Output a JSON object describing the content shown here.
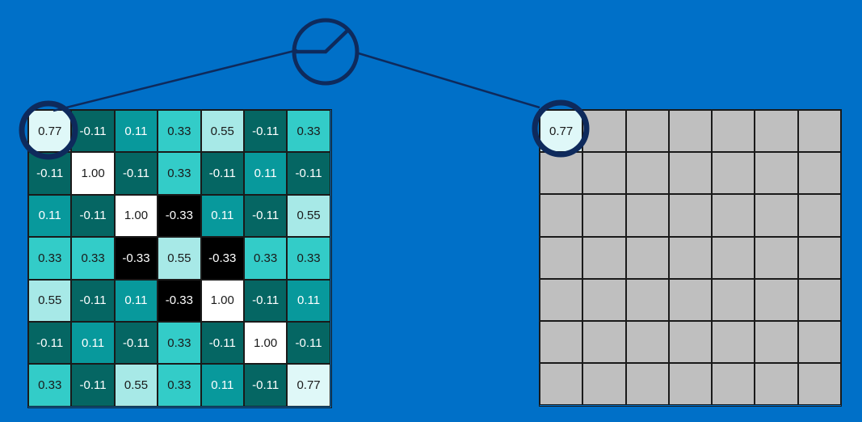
{
  "input_grid": {
    "values": [
      [
        "0.77",
        "-0.11",
        "0.11",
        "0.33",
        "0.55",
        "-0.11",
        "0.33"
      ],
      [
        "-0.11",
        "1.00",
        "-0.11",
        "0.33",
        "-0.11",
        "0.11",
        "-0.11"
      ],
      [
        "0.11",
        "-0.11",
        "1.00",
        "-0.33",
        "0.11",
        "-0.11",
        "0.55"
      ],
      [
        "0.33",
        "0.33",
        "-0.33",
        "0.55",
        "-0.33",
        "0.33",
        "0.33"
      ],
      [
        "0.55",
        "-0.11",
        "0.11",
        "-0.33",
        "1.00",
        "-0.11",
        "0.11"
      ],
      [
        "-0.11",
        "0.11",
        "-0.11",
        "0.33",
        "-0.11",
        "1.00",
        "-0.11"
      ],
      [
        "0.33",
        "-0.11",
        "0.55",
        "0.33",
        "0.11",
        "-0.11",
        "0.77"
      ]
    ]
  },
  "output_grid": {
    "values": [
      [
        "0.77",
        "",
        "",
        "",
        "",
        "",
        ""
      ],
      [
        "",
        "",
        "",
        "",
        "",
        "",
        ""
      ],
      [
        "",
        "",
        "",
        "",
        "",
        "",
        ""
      ],
      [
        "",
        "",
        "",
        "",
        "",
        "",
        ""
      ],
      [
        "",
        "",
        "",
        "",
        "",
        "",
        ""
      ],
      [
        "",
        "",
        "",
        "",
        "",
        "",
        ""
      ],
      [
        "",
        "",
        "",
        "",
        "",
        "",
        ""
      ]
    ],
    "empty_color": "#bfbfbf"
  },
  "colors": {
    "background": "#0070c8",
    "highlight_ring": "#0e2a5c",
    "value_colors": {
      "1.00": "#ffffff",
      "0.77": "#dff8f8",
      "0.55": "#a7e9e7",
      "0.33": "#33ccc8",
      "0.11": "#08999c",
      "-0.11": "#056663",
      "-0.33": "#000000"
    },
    "dark_text_values": [
      "1.00",
      "0.77",
      "0.55",
      "0.33"
    ]
  },
  "icons": {
    "operation_node": "activation-function-icon"
  }
}
